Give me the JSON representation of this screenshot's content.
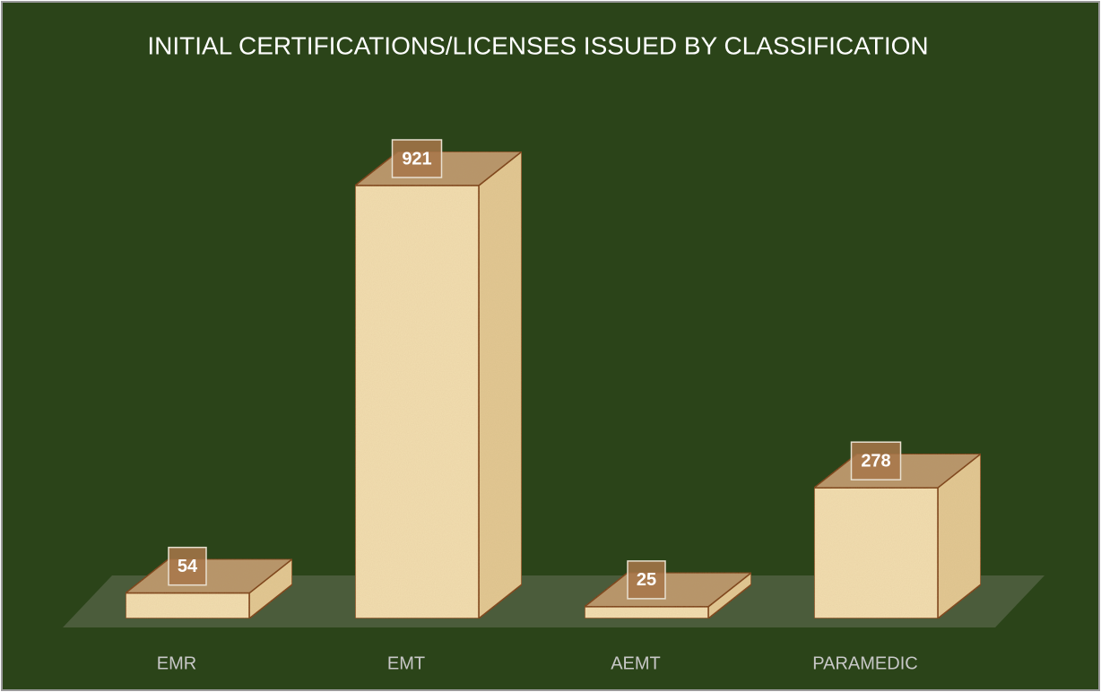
{
  "chart_data": {
    "type": "bar3d",
    "title": "INITIAL CERTIFICATIONS/LICENSES ISSUED BY CLASSIFICATION",
    "categories": [
      "EMR",
      "EMT",
      "AEMT",
      "PARAMEDIC"
    ],
    "values": [
      54,
      921,
      25,
      278
    ],
    "color": "#f3deb0"
  }
}
